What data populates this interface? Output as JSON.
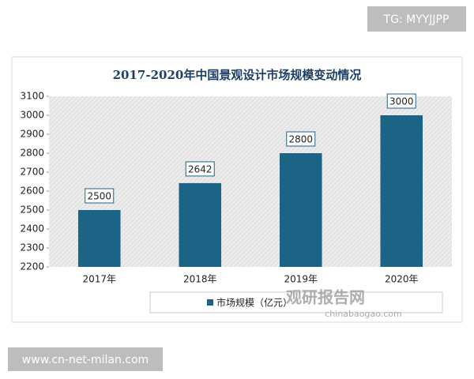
{
  "tag": "TG: MYYJJPP",
  "footer_url": "www.cn-net-milan.com",
  "watermark": "观研报告网",
  "watermark_url": "chinabaogao.com",
  "chart_data": {
    "type": "bar",
    "title": "2017-2020年中国景观设计市场规模变动情况",
    "categories": [
      "2017年",
      "2018年",
      "2019年",
      "2020年"
    ],
    "series": [
      {
        "name": "市场规模（亿元）",
        "color": "#1c6486",
        "values": [
          2500,
          2642,
          2800,
          3000
        ]
      }
    ],
    "ylim": [
      2200,
      3100
    ],
    "yticks": [
      2200,
      2300,
      2400,
      2500,
      2600,
      2700,
      2800,
      2900,
      3000,
      3100
    ],
    "grid": false
  }
}
